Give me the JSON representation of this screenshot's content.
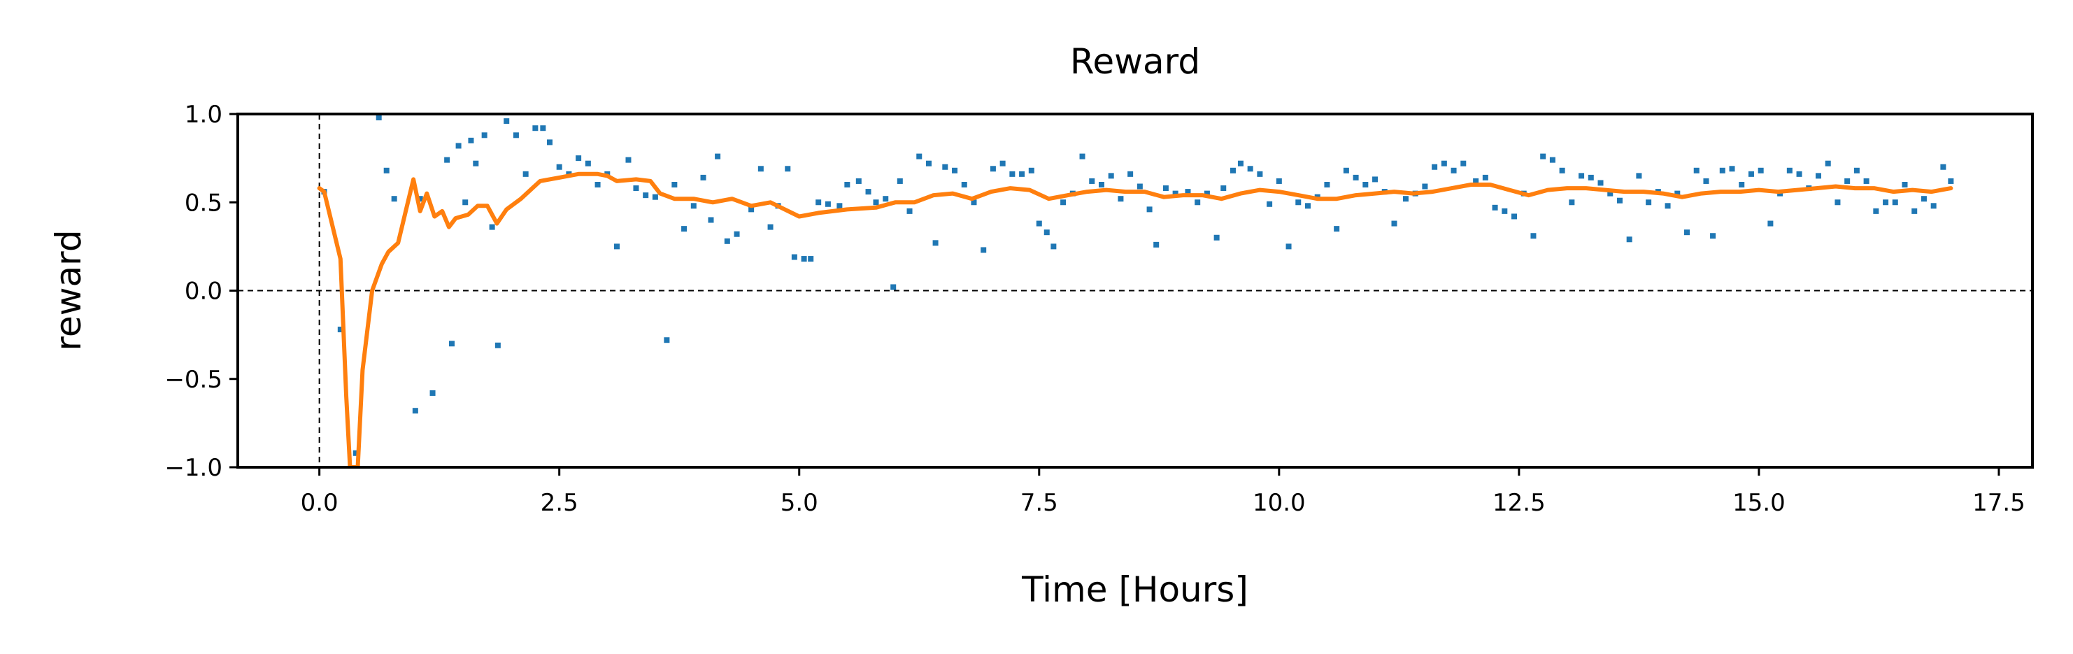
{
  "chart_data": {
    "type": "scatter",
    "title": "Reward",
    "xlabel": "Time [Hours]",
    "ylabel": "reward",
    "xlim": [
      -0.85,
      17.85
    ],
    "ylim": [
      -1.0,
      1.0
    ],
    "xticks": [
      0.0,
      2.5,
      5.0,
      7.5,
      10.0,
      12.5,
      15.0,
      17.5
    ],
    "xtick_labels": [
      "0.0",
      "2.5",
      "5.0",
      "7.5",
      "10.0",
      "12.5",
      "15.0",
      "17.5"
    ],
    "yticks": [
      -1.0,
      -0.5,
      0.0,
      0.5,
      1.0
    ],
    "ytick_labels": [
      "−1.0",
      "−0.5",
      "0.0",
      "0.5",
      "1.0"
    ],
    "reference_lines": {
      "horizontal": 0.0,
      "vertical": 0.0,
      "style": "dashed"
    },
    "grid": false,
    "series": [
      {
        "kind": "scatter",
        "color": "#1f77b4",
        "points": [
          [
            0.05,
            0.56
          ],
          [
            0.22,
            -0.22
          ],
          [
            0.38,
            -0.92
          ],
          [
            0.62,
            0.98
          ],
          [
            0.7,
            0.68
          ],
          [
            0.78,
            0.52
          ],
          [
            1.0,
            -0.68
          ],
          [
            1.05,
            0.52
          ],
          [
            1.18,
            -0.58
          ],
          [
            1.33,
            0.74
          ],
          [
            1.38,
            -0.3
          ],
          [
            1.45,
            0.82
          ],
          [
            1.52,
            0.5
          ],
          [
            1.58,
            0.85
          ],
          [
            1.63,
            0.72
          ],
          [
            1.72,
            0.88
          ],
          [
            1.8,
            0.36
          ],
          [
            1.86,
            -0.31
          ],
          [
            1.95,
            0.96
          ],
          [
            2.05,
            0.88
          ],
          [
            2.15,
            0.66
          ],
          [
            2.25,
            0.92
          ],
          [
            2.33,
            0.92
          ],
          [
            2.4,
            0.84
          ],
          [
            2.5,
            0.7
          ],
          [
            2.6,
            0.66
          ],
          [
            2.7,
            0.75
          ],
          [
            2.8,
            0.72
          ],
          [
            2.9,
            0.6
          ],
          [
            3.0,
            0.66
          ],
          [
            3.1,
            0.25
          ],
          [
            3.22,
            0.74
          ],
          [
            3.3,
            0.58
          ],
          [
            3.4,
            0.54
          ],
          [
            3.5,
            0.53
          ],
          [
            3.62,
            -0.28
          ],
          [
            3.7,
            0.6
          ],
          [
            3.8,
            0.35
          ],
          [
            3.9,
            0.48
          ],
          [
            4.0,
            0.64
          ],
          [
            4.08,
            0.4
          ],
          [
            4.15,
            0.76
          ],
          [
            4.25,
            0.28
          ],
          [
            4.35,
            0.32
          ],
          [
            4.5,
            0.46
          ],
          [
            4.6,
            0.69
          ],
          [
            4.7,
            0.36
          ],
          [
            4.78,
            0.48
          ],
          [
            4.88,
            0.69
          ],
          [
            4.95,
            0.19
          ],
          [
            5.05,
            0.18
          ],
          [
            5.12,
            0.18
          ],
          [
            5.2,
            0.5
          ],
          [
            5.3,
            0.49
          ],
          [
            5.42,
            0.48
          ],
          [
            5.5,
            0.6
          ],
          [
            5.62,
            0.62
          ],
          [
            5.72,
            0.56
          ],
          [
            5.8,
            0.5
          ],
          [
            5.9,
            0.52
          ],
          [
            5.98,
            0.02
          ],
          [
            6.05,
            0.62
          ],
          [
            6.15,
            0.45
          ],
          [
            6.25,
            0.76
          ],
          [
            6.35,
            0.72
          ],
          [
            6.42,
            0.27
          ],
          [
            6.52,
            0.7
          ],
          [
            6.62,
            0.68
          ],
          [
            6.72,
            0.6
          ],
          [
            6.82,
            0.5
          ],
          [
            6.92,
            0.23
          ],
          [
            7.02,
            0.69
          ],
          [
            7.12,
            0.72
          ],
          [
            7.22,
            0.66
          ],
          [
            7.32,
            0.66
          ],
          [
            7.42,
            0.68
          ],
          [
            7.5,
            0.38
          ],
          [
            7.58,
            0.33
          ],
          [
            7.65,
            0.25
          ],
          [
            7.75,
            0.5
          ],
          [
            7.85,
            0.55
          ],
          [
            7.95,
            0.76
          ],
          [
            8.05,
            0.62
          ],
          [
            8.15,
            0.6
          ],
          [
            8.25,
            0.65
          ],
          [
            8.35,
            0.52
          ],
          [
            8.45,
            0.66
          ],
          [
            8.55,
            0.59
          ],
          [
            8.65,
            0.46
          ],
          [
            8.72,
            0.26
          ],
          [
            8.82,
            0.58
          ],
          [
            8.92,
            0.55
          ],
          [
            9.05,
            0.56
          ],
          [
            9.15,
            0.5
          ],
          [
            9.25,
            0.55
          ],
          [
            9.35,
            0.3
          ],
          [
            9.42,
            0.58
          ],
          [
            9.52,
            0.68
          ],
          [
            9.6,
            0.72
          ],
          [
            9.7,
            0.69
          ],
          [
            9.8,
            0.66
          ],
          [
            9.9,
            0.49
          ],
          [
            10.0,
            0.62
          ],
          [
            10.1,
            0.25
          ],
          [
            10.2,
            0.5
          ],
          [
            10.3,
            0.48
          ],
          [
            10.4,
            0.53
          ],
          [
            10.5,
            0.6
          ],
          [
            10.6,
            0.35
          ],
          [
            10.7,
            0.68
          ],
          [
            10.8,
            0.64
          ],
          [
            10.9,
            0.6
          ],
          [
            11.0,
            0.63
          ],
          [
            11.1,
            0.56
          ],
          [
            11.2,
            0.38
          ],
          [
            11.32,
            0.52
          ],
          [
            11.42,
            0.55
          ],
          [
            11.52,
            0.59
          ],
          [
            11.62,
            0.7
          ],
          [
            11.72,
            0.72
          ],
          [
            11.82,
            0.68
          ],
          [
            11.92,
            0.72
          ],
          [
            12.05,
            0.62
          ],
          [
            12.15,
            0.64
          ],
          [
            12.25,
            0.47
          ],
          [
            12.35,
            0.45
          ],
          [
            12.45,
            0.42
          ],
          [
            12.55,
            0.55
          ],
          [
            12.65,
            0.31
          ],
          [
            12.75,
            0.76
          ],
          [
            12.85,
            0.74
          ],
          [
            12.95,
            0.68
          ],
          [
            13.05,
            0.5
          ],
          [
            13.15,
            0.65
          ],
          [
            13.25,
            0.64
          ],
          [
            13.35,
            0.61
          ],
          [
            13.45,
            0.55
          ],
          [
            13.55,
            0.51
          ],
          [
            13.65,
            0.29
          ],
          [
            13.75,
            0.65
          ],
          [
            13.85,
            0.5
          ],
          [
            13.95,
            0.56
          ],
          [
            14.05,
            0.48
          ],
          [
            14.15,
            0.55
          ],
          [
            14.25,
            0.33
          ],
          [
            14.35,
            0.68
          ],
          [
            14.45,
            0.62
          ],
          [
            14.52,
            0.31
          ],
          [
            14.62,
            0.68
          ],
          [
            14.72,
            0.69
          ],
          [
            14.82,
            0.6
          ],
          [
            14.92,
            0.66
          ],
          [
            15.02,
            0.68
          ],
          [
            15.12,
            0.38
          ],
          [
            15.22,
            0.55
          ],
          [
            15.32,
            0.68
          ],
          [
            15.42,
            0.66
          ],
          [
            15.52,
            0.58
          ],
          [
            15.62,
            0.65
          ],
          [
            15.72,
            0.72
          ],
          [
            15.82,
            0.5
          ],
          [
            15.92,
            0.62
          ],
          [
            16.02,
            0.68
          ],
          [
            16.12,
            0.62
          ],
          [
            16.22,
            0.45
          ],
          [
            16.32,
            0.5
          ],
          [
            16.42,
            0.5
          ],
          [
            16.52,
            0.6
          ],
          [
            16.62,
            0.45
          ],
          [
            16.72,
            0.52
          ],
          [
            16.82,
            0.48
          ],
          [
            16.92,
            0.7
          ],
          [
            17.0,
            0.62
          ]
        ]
      },
      {
        "kind": "line",
        "color": "#ff7f0e",
        "points": [
          [
            0.0,
            0.58
          ],
          [
            0.05,
            0.56
          ],
          [
            0.22,
            0.18
          ],
          [
            0.28,
            -0.6
          ],
          [
            0.32,
            -1.0
          ],
          [
            0.4,
            -1.0
          ],
          [
            0.45,
            -0.45
          ],
          [
            0.55,
            0.0
          ],
          [
            0.65,
            0.15
          ],
          [
            0.72,
            0.22
          ],
          [
            0.82,
            0.27
          ],
          [
            0.9,
            0.45
          ],
          [
            0.98,
            0.63
          ],
          [
            1.05,
            0.45
          ],
          [
            1.12,
            0.55
          ],
          [
            1.2,
            0.42
          ],
          [
            1.28,
            0.45
          ],
          [
            1.35,
            0.36
          ],
          [
            1.42,
            0.41
          ],
          [
            1.55,
            0.43
          ],
          [
            1.65,
            0.48
          ],
          [
            1.75,
            0.48
          ],
          [
            1.85,
            0.38
          ],
          [
            1.95,
            0.46
          ],
          [
            2.1,
            0.52
          ],
          [
            2.3,
            0.62
          ],
          [
            2.5,
            0.64
          ],
          [
            2.7,
            0.66
          ],
          [
            2.9,
            0.66
          ],
          [
            3.0,
            0.65
          ],
          [
            3.1,
            0.62
          ],
          [
            3.3,
            0.63
          ],
          [
            3.45,
            0.62
          ],
          [
            3.55,
            0.55
          ],
          [
            3.7,
            0.52
          ],
          [
            3.9,
            0.52
          ],
          [
            4.1,
            0.5
          ],
          [
            4.3,
            0.52
          ],
          [
            4.5,
            0.48
          ],
          [
            4.7,
            0.5
          ],
          [
            4.85,
            0.46
          ],
          [
            5.0,
            0.42
          ],
          [
            5.2,
            0.44
          ],
          [
            5.5,
            0.46
          ],
          [
            5.8,
            0.47
          ],
          [
            6.0,
            0.5
          ],
          [
            6.2,
            0.5
          ],
          [
            6.4,
            0.54
          ],
          [
            6.6,
            0.55
          ],
          [
            6.8,
            0.52
          ],
          [
            7.0,
            0.56
          ],
          [
            7.2,
            0.58
          ],
          [
            7.4,
            0.57
          ],
          [
            7.6,
            0.52
          ],
          [
            7.8,
            0.54
          ],
          [
            8.0,
            0.56
          ],
          [
            8.2,
            0.57
          ],
          [
            8.4,
            0.56
          ],
          [
            8.6,
            0.56
          ],
          [
            8.8,
            0.53
          ],
          [
            9.0,
            0.54
          ],
          [
            9.2,
            0.54
          ],
          [
            9.4,
            0.52
          ],
          [
            9.6,
            0.55
          ],
          [
            9.8,
            0.57
          ],
          [
            10.0,
            0.56
          ],
          [
            10.2,
            0.54
          ],
          [
            10.4,
            0.52
          ],
          [
            10.6,
            0.52
          ],
          [
            10.8,
            0.54
          ],
          [
            11.0,
            0.55
          ],
          [
            11.2,
            0.56
          ],
          [
            11.4,
            0.55
          ],
          [
            11.6,
            0.56
          ],
          [
            11.8,
            0.58
          ],
          [
            12.0,
            0.6
          ],
          [
            12.2,
            0.6
          ],
          [
            12.4,
            0.57
          ],
          [
            12.6,
            0.54
          ],
          [
            12.8,
            0.57
          ],
          [
            13.0,
            0.58
          ],
          [
            13.2,
            0.58
          ],
          [
            13.4,
            0.57
          ],
          [
            13.6,
            0.56
          ],
          [
            13.8,
            0.56
          ],
          [
            14.0,
            0.55
          ],
          [
            14.2,
            0.53
          ],
          [
            14.4,
            0.55
          ],
          [
            14.6,
            0.56
          ],
          [
            14.8,
            0.56
          ],
          [
            15.0,
            0.57
          ],
          [
            15.2,
            0.56
          ],
          [
            15.4,
            0.57
          ],
          [
            15.6,
            0.58
          ],
          [
            15.8,
            0.59
          ],
          [
            16.0,
            0.58
          ],
          [
            16.2,
            0.58
          ],
          [
            16.4,
            0.56
          ],
          [
            16.6,
            0.57
          ],
          [
            16.8,
            0.56
          ],
          [
            17.0,
            0.58
          ]
        ]
      }
    ]
  }
}
